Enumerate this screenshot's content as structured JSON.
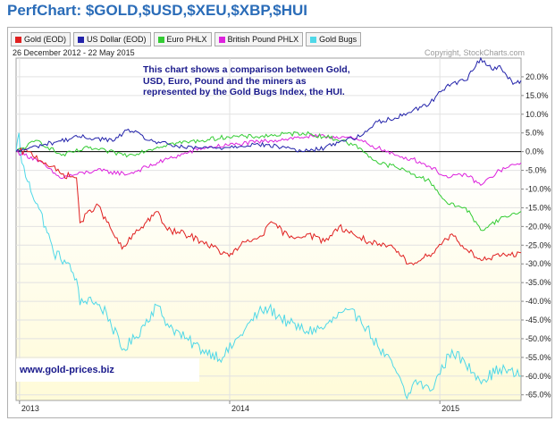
{
  "header": {
    "title": "PerfChart: $GOLD,$USD,$XEU,$XBP,$HUI"
  },
  "date_range": "26 December 2012 - 22 May 2015",
  "copyright": "Copyright, StockCharts.com",
  "annotation": "This chart shows a comparison between Gold, USD, Euro, Pound and the miners as represented by the Gold Bugs Index, the HUI.",
  "website": "www.gold-prices.biz",
  "colors": {
    "gold": "#e02020",
    "usd": "#2222aa",
    "euro": "#33cc33",
    "pound": "#dd22dd",
    "hui": "#4fd8e8",
    "background_upper": "#ffffff",
    "background_lower": "#fffbd8"
  },
  "chart_data": {
    "type": "line",
    "title": "PerfChart: $GOLD,$USD,$XEU,$XBP,$HUI",
    "xlabel": "",
    "ylabel": "",
    "x_tick_labels": [
      "2013",
      "2014",
      "2015"
    ],
    "x_ticks": [
      "2013-01-01",
      "2014-01-01",
      "2015-01-01"
    ],
    "xlim": [
      "2012-12-26",
      "2015-05-22"
    ],
    "ylim": [
      -66.5,
      25
    ],
    "y_ticks": [
      20,
      15,
      10,
      5,
      0,
      -5,
      -10,
      -15,
      -20,
      -25,
      -30,
      -35,
      -40,
      -45,
      -50,
      -55,
      -60,
      -65
    ],
    "y_tick_labels": [
      "20.0%",
      "15.0%",
      "10.0%",
      "5.0%",
      "0.0%",
      "-5.0%",
      "-10.0%",
      "-15.0%",
      "-20.0%",
      "-25.0%",
      "-30.0%",
      "-35.0%",
      "-40.0%",
      "-45.0%",
      "-50.0%",
      "-55.0%",
      "-60.0%",
      "-65.0%"
    ],
    "grid": true,
    "legend_position": "top-left",
    "series": [
      {
        "name": "Gold (EOD)",
        "key": "gold",
        "x": [
          "2012-12-26",
          "2013-01-15",
          "2013-02-15",
          "2013-03-15",
          "2013-04-10",
          "2013-04-16",
          "2013-05-15",
          "2013-06-28",
          "2013-07-20",
          "2013-08-27",
          "2013-09-15",
          "2013-10-15",
          "2013-11-15",
          "2013-12-31",
          "2014-01-20",
          "2014-02-20",
          "2014-03-17",
          "2014-04-15",
          "2014-05-15",
          "2014-06-15",
          "2014-07-10",
          "2014-08-15",
          "2014-09-15",
          "2014-10-15",
          "2014-11-07",
          "2014-12-10",
          "2015-01-22",
          "2015-02-15",
          "2015-03-17",
          "2015-04-15",
          "2015-05-22"
        ],
        "values": [
          0,
          0,
          -3,
          -6,
          -7,
          -19,
          -14,
          -26,
          -22,
          -16,
          -21,
          -22,
          -24,
          -28,
          -25,
          -23,
          -19,
          -23,
          -22,
          -24,
          -20,
          -23,
          -25,
          -26,
          -30,
          -28,
          -22,
          -26,
          -29,
          -28,
          -27
        ]
      },
      {
        "name": "US Dollar (EOD)",
        "key": "usd",
        "x": [
          "2012-12-26",
          "2013-02-15",
          "2013-04-15",
          "2013-06-15",
          "2013-07-09",
          "2013-08-15",
          "2013-10-15",
          "2013-12-15",
          "2014-02-15",
          "2014-04-15",
          "2014-05-08",
          "2014-06-15",
          "2014-07-15",
          "2014-08-15",
          "2014-09-15",
          "2014-10-15",
          "2014-11-15",
          "2014-12-15",
          "2015-01-15",
          "2015-02-15",
          "2015-03-13",
          "2015-04-01",
          "2015-04-15",
          "2015-05-08",
          "2015-05-22"
        ],
        "values": [
          0,
          2,
          4,
          3,
          6,
          3,
          1,
          1,
          2,
          1,
          0,
          1,
          3,
          4,
          8,
          9,
          11,
          13,
          18,
          19,
          25,
          22,
          23,
          18,
          19
        ]
      },
      {
        "name": "Euro PHLX",
        "key": "euro",
        "x": [
          "2012-12-26",
          "2013-02-01",
          "2013-03-15",
          "2013-05-01",
          "2013-07-09",
          "2013-09-15",
          "2013-11-15",
          "2013-12-27",
          "2014-02-15",
          "2014-05-08",
          "2014-06-15",
          "2014-07-15",
          "2014-08-15",
          "2014-09-15",
          "2014-10-15",
          "2014-11-15",
          "2014-12-15",
          "2015-01-15",
          "2015-02-15",
          "2015-03-13",
          "2015-04-15",
          "2015-05-22"
        ],
        "values": [
          0,
          3,
          -1,
          1,
          -1,
          2,
          3,
          4,
          4,
          5,
          4,
          3,
          1,
          -3,
          -4,
          -6,
          -8,
          -14,
          -15,
          -21,
          -18,
          -16
        ]
      },
      {
        "name": "British Pound PHLX",
        "key": "pound",
        "x": [
          "2012-12-26",
          "2013-01-30",
          "2013-03-12",
          "2013-05-15",
          "2013-07-09",
          "2013-09-15",
          "2013-11-15",
          "2014-01-15",
          "2014-03-15",
          "2014-05-15",
          "2014-07-15",
          "2014-08-15",
          "2014-09-15",
          "2014-10-15",
          "2014-11-15",
          "2014-12-15",
          "2015-01-15",
          "2015-02-15",
          "2015-03-13",
          "2015-04-15",
          "2015-05-22"
        ],
        "values": [
          0,
          -2,
          -7,
          -5,
          -6,
          -2,
          1,
          2,
          3,
          4,
          4,
          3,
          1,
          -1,
          -2,
          -4,
          -7,
          -6,
          -9,
          -5,
          -3
        ]
      },
      {
        "name": "Gold Bugs",
        "key": "hui",
        "x": [
          "2012-12-26",
          "2012-12-31",
          "2013-01-05",
          "2013-01-15",
          "2013-02-01",
          "2013-02-15",
          "2013-03-01",
          "2013-03-20",
          "2013-04-10",
          "2013-04-16",
          "2013-05-01",
          "2013-06-01",
          "2013-06-28",
          "2013-07-20",
          "2013-08-27",
          "2013-09-15",
          "2013-10-15",
          "2013-11-15",
          "2013-12-20",
          "2014-01-20",
          "2014-02-20",
          "2014-03-10",
          "2014-04-15",
          "2014-05-15",
          "2014-06-15",
          "2014-07-15",
          "2014-08-15",
          "2014-09-15",
          "2014-10-15",
          "2014-11-05",
          "2014-11-20",
          "2014-12-15",
          "2015-01-22",
          "2015-02-15",
          "2015-03-17",
          "2015-04-15",
          "2015-05-22"
        ],
        "values": [
          0,
          5,
          -3,
          -8,
          -14,
          -20,
          -27,
          -29,
          -34,
          -41,
          -39,
          -43,
          -53,
          -50,
          -41,
          -46,
          -50,
          -53,
          -55,
          -49,
          -43,
          -42,
          -46,
          -48,
          -47,
          -43,
          -44,
          -52,
          -58,
          -66,
          -61,
          -64,
          -53,
          -57,
          -61,
          -58,
          -60
        ]
      }
    ]
  }
}
